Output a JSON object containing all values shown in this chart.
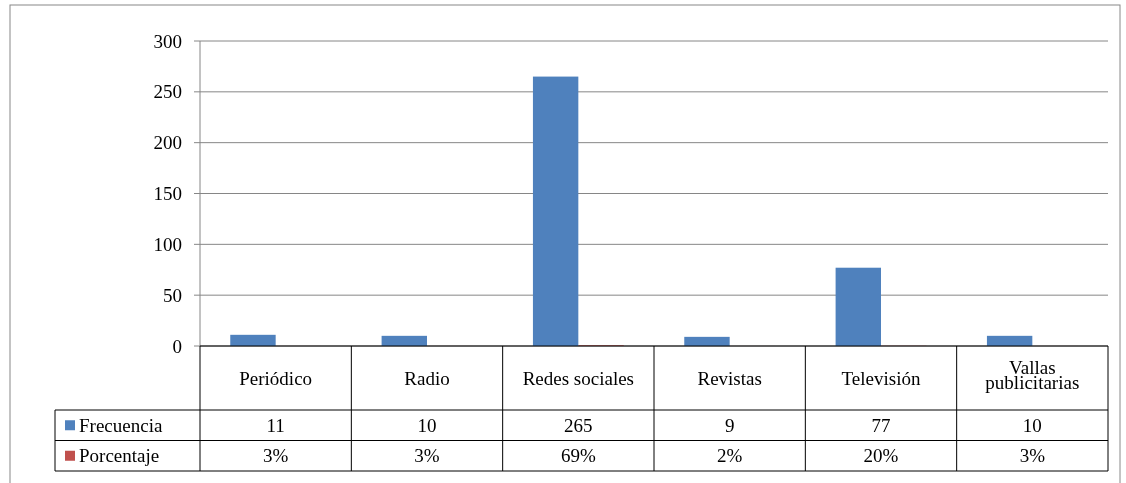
{
  "chart_data": {
    "type": "bar",
    "categories": [
      "Periódico",
      "Radio",
      "Redes sociales",
      "Revistas",
      "Televisión",
      "Vallas publicitarias"
    ],
    "series": [
      {
        "name": "Frecuencia",
        "color": "#4f81bd",
        "values": [
          11,
          10,
          265,
          9,
          77,
          10
        ],
        "value_labels": [
          "11",
          "10",
          "265",
          "9",
          "77",
          "10"
        ]
      },
      {
        "name": "Porcentaje",
        "color": "#c0504d",
        "values": [
          0.03,
          0.03,
          0.69,
          0.02,
          0.2,
          0.03
        ],
        "value_labels": [
          "3%",
          "3%",
          "69%",
          "2%",
          "20%",
          "3%"
        ]
      }
    ],
    "ylim": [
      0,
      300
    ],
    "yticks": [
      0,
      50,
      100,
      150,
      200,
      250,
      300
    ],
    "grid": "y",
    "legend": "bottom left"
  }
}
